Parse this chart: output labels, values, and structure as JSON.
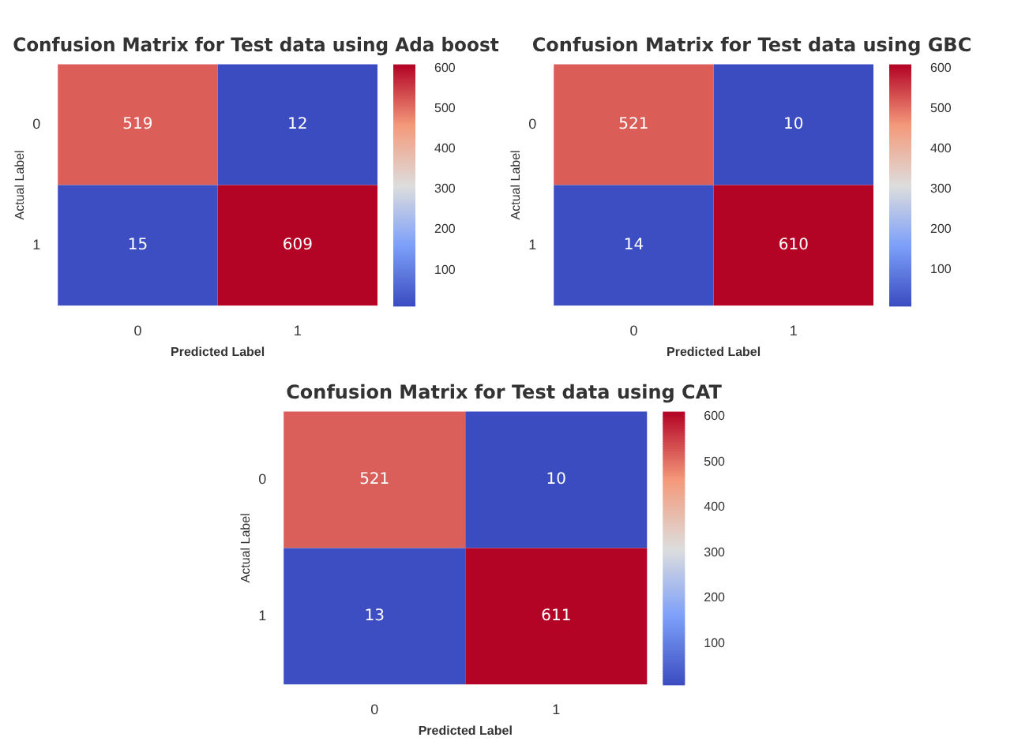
{
  "chart_data": [
    {
      "type": "heatmap",
      "title": "Confusion Matrix for Test data using Ada boost",
      "xlabel": "Predicted Label",
      "ylabel": "Actual Label",
      "categories": [
        "0",
        "1"
      ],
      "y_categories": [
        "0",
        "1"
      ],
      "cells": [
        [
          519,
          12
        ],
        [
          15,
          609
        ]
      ],
      "clim": [
        12,
        609
      ],
      "cticks": [
        100,
        200,
        300,
        400,
        500,
        600
      ],
      "data_labels": true
    },
    {
      "type": "heatmap",
      "title": "Confusion Matrix for Test data using GBC",
      "xlabel": "Predicted Label",
      "ylabel": "Actual Label",
      "categories": [
        "0",
        "1"
      ],
      "y_categories": [
        "0",
        "1"
      ],
      "cells": [
        [
          521,
          10
        ],
        [
          14,
          610
        ]
      ],
      "clim": [
        10,
        610
      ],
      "cticks": [
        100,
        200,
        300,
        400,
        500,
        600
      ],
      "data_labels": true
    },
    {
      "type": "heatmap",
      "title": "Confusion Matrix for Test data using CAT",
      "xlabel": "Predicted Label",
      "ylabel": "Actual Label",
      "categories": [
        "0",
        "1"
      ],
      "y_categories": [
        "0",
        "1"
      ],
      "cells": [
        [
          521,
          10
        ],
        [
          13,
          611
        ]
      ],
      "clim": [
        10,
        611
      ],
      "cticks": [
        100,
        200,
        300,
        400,
        500,
        600
      ],
      "data_labels": true
    }
  ]
}
